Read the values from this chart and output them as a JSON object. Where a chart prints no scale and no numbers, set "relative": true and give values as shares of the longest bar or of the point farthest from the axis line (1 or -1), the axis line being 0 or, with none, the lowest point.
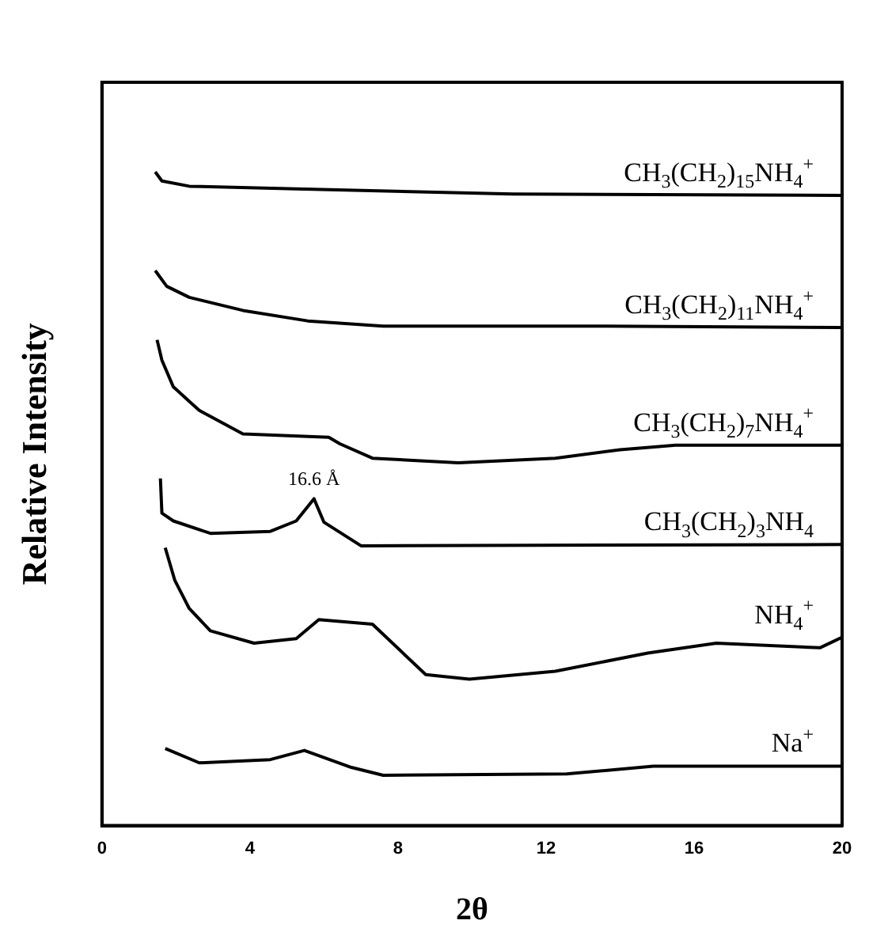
{
  "chart_data": {
    "type": "line",
    "xlabel": "2θ",
    "ylabel": "Relative Intensity",
    "relative": true,
    "xlim": [
      0,
      20
    ],
    "xticks": [
      0,
      4,
      8,
      12,
      16,
      20
    ],
    "grid": false,
    "legend": false,
    "marker": "none",
    "line_style": "solid",
    "annotations": [
      {
        "text": "16.6 Å",
        "x": 5.73,
        "y": 0.5
      }
    ],
    "series": [
      {
        "name": "CH$_{3}$(CH$_{2}$)$_{15}$NH$_{4}$$^{+}$",
        "color": "#000000",
        "x": [
          1.44,
          1.62,
          2.36,
          5.25,
          11.1,
          20
        ],
        "values": [
          1.0,
          0.986,
          0.978,
          0.974,
          0.966,
          0.964
        ]
      },
      {
        "name": "CH$_{3}$(CH$_{2}$)$_{11}$NH$_{4}$$^{+}$",
        "color": "#000000",
        "x": [
          1.44,
          1.75,
          2.36,
          3.81,
          5.56,
          7.6,
          13.6,
          20
        ],
        "values": [
          0.849,
          0.825,
          0.808,
          0.788,
          0.772,
          0.764,
          0.764,
          0.762
        ]
      },
      {
        "name": "CH$_{3}$(CH$_{2}$)$_{7}$NH$_{4}$$^{+}$",
        "color": "#000000",
        "x": [
          1.49,
          1.62,
          1.93,
          2.63,
          3.81,
          6.13,
          6.43,
          7.31,
          9.63,
          12.25,
          14.0,
          15.5,
          20
        ],
        "values": [
          0.743,
          0.712,
          0.671,
          0.635,
          0.599,
          0.594,
          0.584,
          0.562,
          0.555,
          0.562,
          0.575,
          0.582,
          0.582
        ]
      },
      {
        "name": "CH$_{3}$(CH$_{2}$)$_{3}$NH$_{4}$",
        "color": "#000000",
        "x": [
          1.58,
          1.62,
          1.93,
          2.93,
          4.55,
          5.25,
          5.73,
          6.0,
          7.0,
          20
        ],
        "values": [
          0.531,
          0.478,
          0.466,
          0.447,
          0.45,
          0.466,
          0.5,
          0.464,
          0.428,
          0.43
        ]
      },
      {
        "name": "NH$_{4}$$^{+}$",
        "color": "#000000",
        "x": [
          1.71,
          1.97,
          2.36,
          2.93,
          4.11,
          5.25,
          5.86,
          7.31,
          8.75,
          9.93,
          12.25,
          14.75,
          16.6,
          19.4,
          20
        ],
        "values": [
          0.425,
          0.375,
          0.332,
          0.298,
          0.279,
          0.286,
          0.315,
          0.308,
          0.231,
          0.224,
          0.236,
          0.264,
          0.279,
          0.272,
          0.288
        ]
      },
      {
        "name": "Na$^{+}$",
        "color": "#000000",
        "x": [
          1.71,
          2.63,
          4.55,
          5.47,
          6.74,
          7.6,
          12.56,
          14.9,
          20
        ],
        "values": [
          0.118,
          0.096,
          0.101,
          0.115,
          0.089,
          0.077,
          0.079,
          0.091,
          0.091
        ]
      }
    ]
  }
}
